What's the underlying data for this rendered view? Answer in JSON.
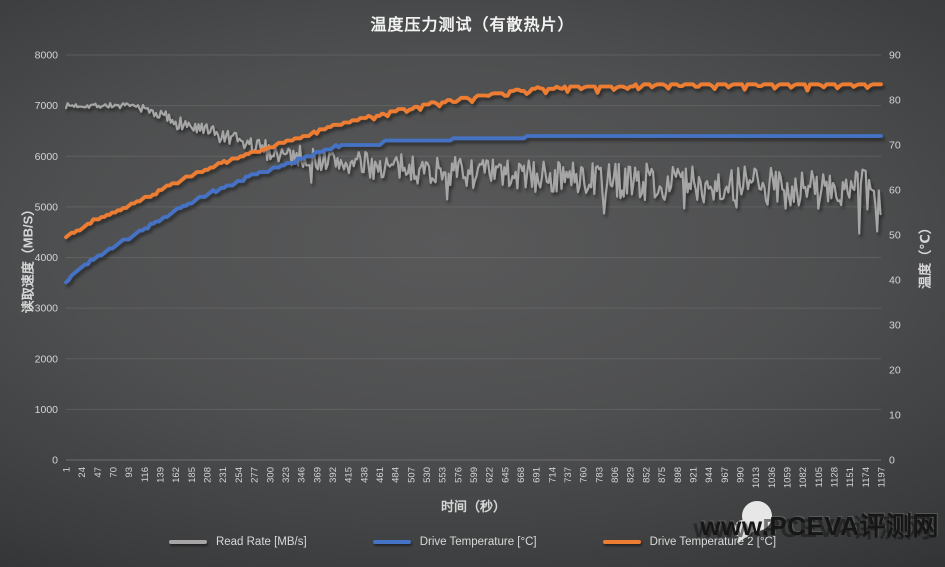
{
  "title": "温度压力测试（有散热片）",
  "watermark": {
    "text": "www.PCEVA评测网",
    "logo": "chat-bubbles-icon"
  },
  "colors": {
    "background_center": "#59595a",
    "background_edge": "#28292b",
    "gridline": "#757575",
    "tick_text": "#d4d4d4",
    "title_text": "#f2f2f2",
    "series_gray": "#a6a6a6",
    "series_blue": "#4472c4",
    "series_orange": "#ed7d31"
  },
  "chart_data": {
    "type": "line",
    "title": "温度压力测试（有散热片）",
    "xlabel": "时间（秒）",
    "ylabel_left": "读取速度（MB/S）",
    "ylabel_right": "温度（℃）",
    "grid": "horizontal",
    "legend_position": "bottom",
    "xlim": [
      1,
      1197
    ],
    "x_ticks": [
      1,
      24,
      47,
      70,
      93,
      116,
      139,
      162,
      185,
      208,
      231,
      254,
      277,
      300,
      323,
      346,
      369,
      392,
      415,
      438,
      461,
      484,
      507,
      530,
      553,
      576,
      599,
      622,
      645,
      668,
      691,
      714,
      737,
      760,
      783,
      806,
      829,
      852,
      875,
      898,
      921,
      944,
      967,
      990,
      1013,
      1036,
      1059,
      1082,
      1105,
      1128,
      1151,
      1174,
      1197
    ],
    "left_axis": {
      "lim": [
        0,
        8000
      ],
      "ticks": [
        0,
        1000,
        2000,
        3000,
        4000,
        5000,
        6000,
        7000,
        8000
      ]
    },
    "right_axis": {
      "lim": [
        0,
        90
      ],
      "ticks": [
        0,
        10,
        20,
        30,
        40,
        50,
        60,
        70,
        80,
        90
      ]
    },
    "seed": 7,
    "series": [
      {
        "id": "read_rate",
        "name": "Read Rate [MB/s]",
        "color": "#a6a6a6",
        "axis": "left",
        "stroke_width": 2.1,
        "sample_step": 2.4,
        "trend": [
          [
            1,
            7000
          ],
          [
            60,
            7005
          ],
          [
            105,
            6985
          ],
          [
            130,
            6870
          ],
          [
            160,
            6710
          ],
          [
            190,
            6560
          ],
          [
            220,
            6420
          ],
          [
            250,
            6290
          ],
          [
            280,
            6180
          ],
          [
            310,
            6080
          ],
          [
            340,
            6000
          ],
          [
            380,
            5920
          ],
          [
            420,
            5850
          ],
          [
            470,
            5790
          ],
          [
            530,
            5730
          ],
          [
            600,
            5670
          ],
          [
            680,
            5610
          ],
          [
            760,
            5560
          ],
          [
            850,
            5500
          ],
          [
            950,
            5440
          ],
          [
            1060,
            5370
          ],
          [
            1197,
            5300
          ]
        ],
        "noise_amp": [
          [
            1,
            60
          ],
          [
            100,
            70
          ],
          [
            135,
            130
          ],
          [
            200,
            185
          ],
          [
            260,
            215
          ],
          [
            330,
            255
          ],
          [
            420,
            300
          ],
          [
            520,
            335
          ],
          [
            640,
            370
          ],
          [
            760,
            405
          ],
          [
            880,
            440
          ],
          [
            1000,
            465
          ],
          [
            1100,
            495
          ],
          [
            1197,
            525
          ]
        ],
        "dip_chance": 0.055,
        "dip_scale": 0.85,
        "spikes": [
          [
            1191,
            760
          ]
        ],
        "spike_width": 6
      },
      {
        "id": "drive_temp",
        "name": "Drive Temperature [°C]",
        "color": "#4472c4",
        "axis": "right",
        "stroke_width": 3.8,
        "sample_step": 4,
        "quantize": 0.5,
        "jitter": 0.26,
        "trend": [
          [
            1,
            39.5
          ],
          [
            25,
            43
          ],
          [
            60,
            46.5
          ],
          [
            95,
            49.5
          ],
          [
            135,
            53
          ],
          [
            175,
            56.5
          ],
          [
            215,
            59.5
          ],
          [
            255,
            62
          ],
          [
            290,
            64
          ],
          [
            330,
            66
          ],
          [
            370,
            68.3
          ],
          [
            395,
            69.7
          ],
          [
            415,
            70
          ],
          [
            462,
            70
          ],
          [
            468,
            70.9
          ],
          [
            555,
            70.9
          ],
          [
            572,
            71.3
          ],
          [
            670,
            71.3
          ],
          [
            678,
            72
          ],
          [
            1197,
            72
          ]
        ],
        "spikes": [],
        "spike_width": 4
      },
      {
        "id": "drive_temp_2",
        "name": "Drive Temperature 2 [°C]",
        "color": "#ed7d31",
        "axis": "right",
        "stroke_width": 3.8,
        "sample_step": 4,
        "quantize": 0.5,
        "jitter": 0.26,
        "trend": [
          [
            1,
            49.5
          ],
          [
            40,
            53
          ],
          [
            92,
            56.5
          ],
          [
            140,
            60
          ],
          [
            190,
            63.5
          ],
          [
            240,
            66.5
          ],
          [
            290,
            69
          ],
          [
            340,
            71.5
          ],
          [
            390,
            74
          ],
          [
            440,
            76
          ],
          [
            490,
            77.8
          ],
          [
            540,
            79.3
          ],
          [
            590,
            80.6
          ],
          [
            640,
            81.6
          ],
          [
            700,
            82.5
          ],
          [
            760,
            83
          ],
          [
            850,
            83.3
          ],
          [
            1000,
            83.4
          ],
          [
            1197,
            83.4
          ]
        ],
        "spikes": [
          [
            452,
            1.1
          ],
          [
            472,
            0.8
          ],
          [
            503,
            1.3
          ],
          [
            521,
            0.7
          ],
          [
            548,
            1.2
          ],
          [
            571,
            0.9
          ],
          [
            596,
            1.3
          ],
          [
            622,
            0.8
          ],
          [
            647,
            1.1
          ],
          [
            663,
            -0.6
          ],
          [
            678,
            0.9
          ],
          [
            694,
            -0.5
          ],
          [
            705,
            1.0
          ],
          [
            722,
            -0.6
          ],
          [
            737,
            1.2
          ],
          [
            758,
            0.8
          ],
          [
            781,
            1.4
          ],
          [
            806,
            1.0
          ],
          [
            824,
            0.7
          ],
          [
            843,
            1.2
          ],
          [
            862,
            0.9
          ],
          [
            884,
            1.3
          ],
          [
            903,
            0.8
          ],
          [
            927,
            1.1
          ],
          [
            952,
            1.4
          ],
          [
            974,
            0.9
          ],
          [
            997,
            1.2
          ],
          [
            1019,
            0.8
          ],
          [
            1042,
            1.3
          ],
          [
            1066,
            1.0
          ],
          [
            1089,
            1.4
          ],
          [
            1112,
            0.9
          ],
          [
            1134,
            1.2
          ],
          [
            1158,
            0.8
          ],
          [
            1178,
            1.1
          ]
        ],
        "spike_width": 4
      }
    ]
  }
}
